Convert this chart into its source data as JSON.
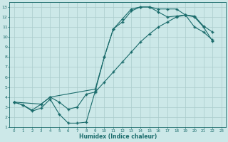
{
  "xlabel": "Humidex (Indice chaleur)",
  "xlim": [
    -0.5,
    23.5
  ],
  "ylim": [
    1,
    13.5
  ],
  "xticks": [
    0,
    1,
    2,
    3,
    4,
    5,
    6,
    7,
    8,
    9,
    10,
    11,
    12,
    13,
    14,
    15,
    16,
    17,
    18,
    19,
    20,
    21,
    22,
    23
  ],
  "yticks": [
    1,
    2,
    3,
    4,
    5,
    6,
    7,
    8,
    9,
    10,
    11,
    12,
    13
  ],
  "background_color": "#cce8e8",
  "grid_color": "#aacccc",
  "line_color": "#1a6b6b",
  "line1_x": [
    0,
    1,
    2,
    3,
    4,
    5,
    6,
    7,
    8,
    9,
    10,
    11,
    12,
    13,
    14,
    15,
    16,
    17,
    18,
    19,
    20,
    21,
    22
  ],
  "line1_y": [
    3.5,
    3.2,
    2.6,
    2.9,
    3.8,
    2.3,
    1.4,
    1.4,
    1.5,
    4.6,
    8.0,
    10.8,
    11.8,
    12.8,
    13.0,
    13.0,
    12.8,
    12.8,
    12.8,
    12.2,
    11.0,
    10.5,
    9.7
  ],
  "line2_x": [
    0,
    1,
    2,
    3,
    4,
    9,
    10,
    11,
    12,
    13,
    14,
    15,
    16,
    17,
    18,
    19,
    20,
    21,
    22
  ],
  "line2_y": [
    3.5,
    3.2,
    2.7,
    3.3,
    4.0,
    4.8,
    8.0,
    10.8,
    11.5,
    12.6,
    13.0,
    13.0,
    12.5,
    12.0,
    12.1,
    12.2,
    12.1,
    11.1,
    10.5
  ],
  "line3_x": [
    0,
    3,
    4,
    5,
    6,
    7,
    8,
    9,
    10,
    11,
    12,
    13,
    14,
    15,
    16,
    17,
    18,
    19,
    20,
    21,
    22
  ],
  "line3_y": [
    3.5,
    3.3,
    4.0,
    3.5,
    2.8,
    3.0,
    4.3,
    4.5,
    5.5,
    6.5,
    7.5,
    8.5,
    9.5,
    10.3,
    11.0,
    11.5,
    12.0,
    12.2,
    12.0,
    11.0,
    9.6
  ]
}
